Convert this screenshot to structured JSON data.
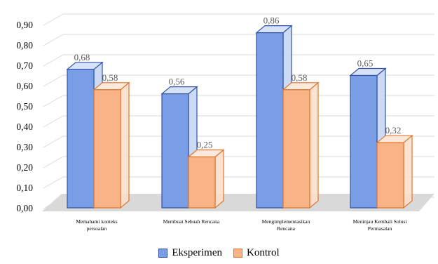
{
  "chart_data": {
    "type": "bar",
    "style": "3d-clustered-column",
    "categories": [
      [
        "Memahami konteks",
        "persoalan"
      ],
      [
        "Membuat Sebuah Rencana"
      ],
      [
        "Mengimplementasikan",
        "Rencana"
      ],
      [
        "Meninjau Kembali Solusi",
        "Permasalan"
      ]
    ],
    "series": [
      {
        "name": "Eksperimen",
        "values": [
          0.68,
          0.56,
          0.86,
          0.65
        ],
        "value_labels": [
          "0,68",
          "0,56",
          "0,86",
          "0,65"
        ],
        "color": "#7a9ee6",
        "edge": "#2f52a6"
      },
      {
        "name": "Kontrol",
        "values": [
          0.58,
          0.25,
          0.58,
          0.32
        ],
        "value_labels": [
          "0,58",
          "0,25",
          "0,58",
          "0,32"
        ],
        "color": "#f8b486",
        "edge": "#e0742c"
      }
    ],
    "yticks": [
      "0,00",
      "0,10",
      "0,20",
      "0,30",
      "0,40",
      "0,50",
      "0,60",
      "0,70",
      "0,80",
      "0,90"
    ],
    "ylim": [
      0,
      0.9
    ],
    "grid": true,
    "legend_position": "bottom"
  }
}
